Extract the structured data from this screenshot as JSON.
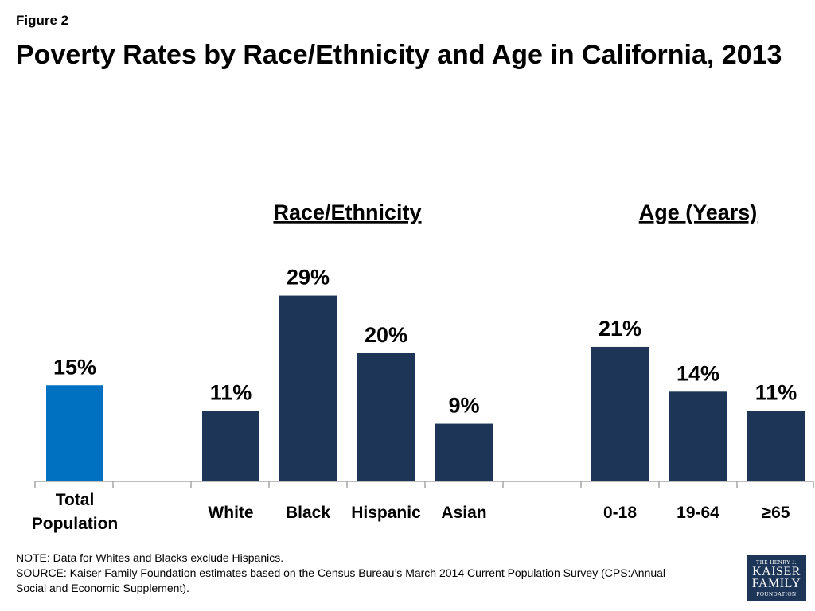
{
  "figure_label": "Figure 2",
  "title": "Poverty Rates by Race/Ethnicity and Age in California, 2013",
  "chart_data": {
    "type": "bar",
    "title": "Poverty Rates by Race/Ethnicity and Age in California, 2013",
    "categories": [
      [
        "Total",
        "Population"
      ],
      [
        "White"
      ],
      [
        "Black"
      ],
      [
        "Hispanic"
      ],
      [
        "Asian"
      ],
      [
        "0-18"
      ],
      [
        "19-64"
      ],
      [
        "≥65"
      ]
    ],
    "values": [
      15,
      11,
      29,
      20,
      9,
      21,
      14,
      11
    ],
    "value_labels": [
      "15%",
      "11%",
      "29%",
      "20%",
      "9%",
      "21%",
      "14%",
      "11%"
    ],
    "groups": [
      {
        "header": "",
        "indices": [
          0
        ]
      },
      {
        "header": "Race/Ethnicity",
        "indices": [
          1,
          2,
          3,
          4
        ]
      },
      {
        "header": "Age (Years)",
        "indices": [
          5,
          6,
          7
        ]
      }
    ],
    "colors": {
      "total": "#0070c0",
      "default": "#1d3658"
    },
    "ylim": [
      0,
      35
    ],
    "grid": false,
    "legend": "none"
  },
  "notes": [
    "NOTE: Data for Whites and Blacks exclude Hispanics.",
    "SOURCE: Kaiser Family Foundation estimates based on the Census Bureau’s March 2014 Current Population Survey (CPS:Annual",
    "Social and Economic Supplement)."
  ],
  "logo": {
    "line1": "THE HENRY J.",
    "line2": "KAISER",
    "line3": "FAMILY",
    "line4": "FOUNDATION"
  }
}
